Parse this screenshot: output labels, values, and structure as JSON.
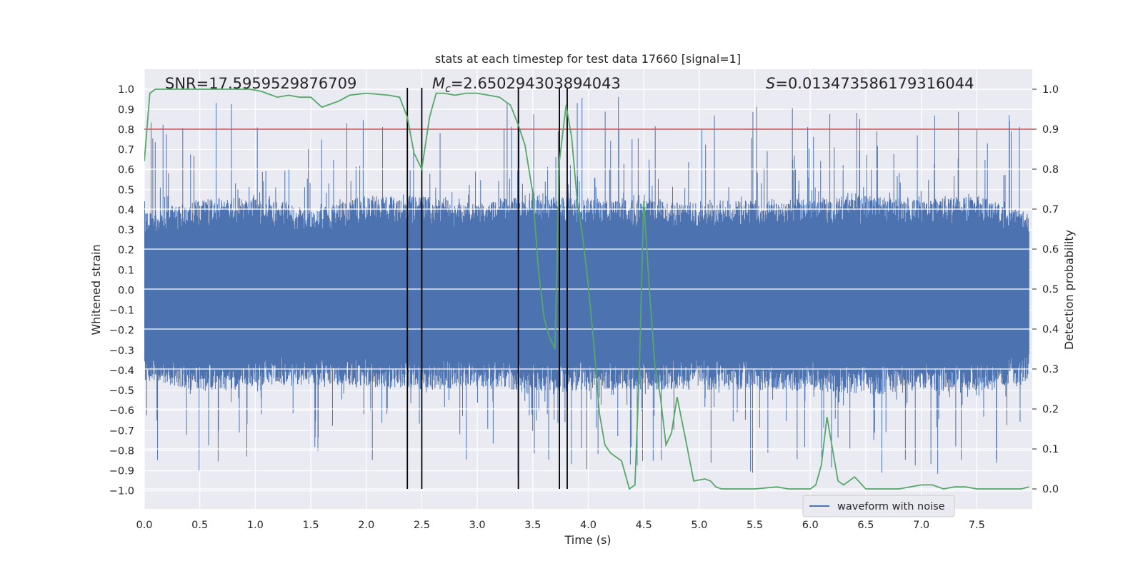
{
  "chart_data": {
    "type": "line",
    "title": "stats at each timestep for test data 17660 [signal=1]",
    "xlabel": "Time (s)",
    "ylabel_left": "Whitened strain",
    "ylabel_right": "Detection probability",
    "xlim": [
      0.0,
      8.0
    ],
    "ylim_left": [
      -1.09,
      1.1
    ],
    "ylim_right": [
      -0.05,
      1.05
    ],
    "x_ticks": [
      0.0,
      0.5,
      1.0,
      1.5,
      2.0,
      2.5,
      3.0,
      3.5,
      4.0,
      4.5,
      5.0,
      5.5,
      6.0,
      6.5,
      7.0,
      7.5
    ],
    "x_tick_labels": [
      "0.0",
      "0.5",
      "1.0",
      "1.5",
      "2.0",
      "2.5",
      "3.0",
      "3.5",
      "4.0",
      "4.5",
      "5.0",
      "5.5",
      "6.0",
      "6.5",
      "7.0",
      "7.5"
    ],
    "y_left_ticks": [
      1.0,
      0.9,
      0.8,
      0.7,
      0.6,
      0.5,
      0.4,
      0.3,
      0.2,
      0.1,
      0.0,
      -0.1,
      -0.2,
      -0.3,
      -0.4,
      -0.5,
      -0.6,
      -0.7,
      -0.8,
      -0.9,
      -1.0
    ],
    "y_left_tick_labels": [
      "1.0",
      "0.9",
      "0.8",
      "0.7",
      "0.6",
      "0.5",
      "0.4",
      "0.3",
      "0.2",
      "0.1",
      "0.0",
      "−0.1",
      "−0.2",
      "−0.3",
      "−0.4",
      "−0.5",
      "−0.6",
      "−0.7",
      "−0.8",
      "−0.9",
      "−1.0"
    ],
    "y_right_ticks": [
      1.0,
      0.9,
      0.8,
      0.7,
      0.6,
      0.5,
      0.4,
      0.3,
      0.2,
      0.1,
      0.0
    ],
    "y_right_tick_labels": [
      "1.0",
      "0.9",
      "0.8",
      "0.7",
      "0.6",
      "0.5",
      "0.4",
      "0.3",
      "0.2",
      "0.1",
      "0.0"
    ],
    "annotations": {
      "snr_label": "SNR=17.5959529876709",
      "mc_prefix": "M",
      "mc_sub": "c",
      "mc_value": "=2.650294303894043",
      "s_prefix": "S",
      "s_value": "=0.013473586179316044"
    },
    "threshold_prob": 0.9,
    "colors": {
      "waveform": "#4c72b0",
      "probability": "#55a868",
      "threshold": "#c44e52",
      "markers": "#000000",
      "background": "#eaeaf2"
    },
    "legend": {
      "label": "waveform with noise",
      "placement": "lower-right"
    },
    "vertical_markers": [
      2.37,
      2.5,
      3.37,
      3.74,
      3.81
    ],
    "waveform_envelope": {
      "x": [
        0.0,
        0.5,
        1.0,
        1.5,
        2.0,
        2.5,
        3.0,
        3.5,
        4.0,
        4.5,
        5.0,
        5.5,
        6.0,
        6.5,
        7.0,
        7.5,
        8.0
      ],
      "typical_max": [
        0.38,
        0.45,
        0.47,
        0.4,
        0.47,
        0.47,
        0.43,
        0.48,
        0.45,
        0.45,
        0.44,
        0.45,
        0.46,
        0.47,
        0.45,
        0.47,
        0.38
      ],
      "typical_min": [
        -0.45,
        -0.5,
        -0.48,
        -0.47,
        -0.48,
        -0.5,
        -0.48,
        -0.52,
        -0.5,
        -0.5,
        -0.49,
        -0.5,
        -0.5,
        -0.52,
        -0.5,
        -0.52,
        -0.45
      ],
      "peak_max": 0.98,
      "peak_min": -0.93
    },
    "series": [
      {
        "name": "detection probability",
        "x": [
          0.0,
          0.05,
          0.1,
          0.2,
          0.4,
          0.6,
          0.8,
          0.95,
          1.05,
          1.2,
          1.3,
          1.4,
          1.5,
          1.6,
          1.65,
          1.75,
          1.85,
          2.0,
          2.2,
          2.3,
          2.37,
          2.43,
          2.5,
          2.57,
          2.63,
          2.7,
          2.8,
          2.9,
          3.0,
          3.1,
          3.2,
          3.3,
          3.37,
          3.43,
          3.5,
          3.55,
          3.6,
          3.65,
          3.7,
          3.74,
          3.8,
          3.85,
          3.9,
          3.95,
          4.0,
          4.05,
          4.1,
          4.15,
          4.2,
          4.3,
          4.37,
          4.42,
          4.46,
          4.5,
          4.55,
          4.6,
          4.65,
          4.7,
          4.75,
          4.8,
          4.88,
          4.95,
          5.05,
          5.1,
          5.15,
          5.2,
          5.3,
          5.5,
          5.7,
          5.8,
          6.0,
          6.05,
          6.1,
          6.15,
          6.2,
          6.25,
          6.3,
          6.4,
          6.5,
          6.6,
          6.8,
          7.0,
          7.1,
          7.2,
          7.3,
          7.4,
          7.5,
          7.7,
          7.9,
          7.97
        ],
        "y": [
          0.82,
          0.99,
          1.0,
          1.0,
          1.0,
          1.0,
          1.0,
          1.0,
          0.995,
          0.98,
          0.985,
          0.98,
          0.98,
          0.955,
          0.96,
          0.97,
          0.985,
          0.99,
          0.985,
          0.98,
          0.93,
          0.84,
          0.8,
          0.93,
          0.99,
          0.99,
          0.985,
          0.99,
          0.99,
          0.985,
          0.98,
          0.96,
          0.91,
          0.86,
          0.74,
          0.55,
          0.43,
          0.38,
          0.35,
          0.82,
          0.96,
          0.88,
          0.72,
          0.63,
          0.51,
          0.36,
          0.19,
          0.11,
          0.09,
          0.07,
          0.0,
          0.01,
          0.3,
          0.72,
          0.5,
          0.31,
          0.23,
          0.11,
          0.14,
          0.23,
          0.12,
          0.02,
          0.025,
          0.02,
          0.005,
          0.0,
          0.0,
          0.0,
          0.005,
          0.0,
          0.0,
          0.01,
          0.06,
          0.18,
          0.1,
          0.02,
          0.01,
          0.03,
          0.0,
          0.0,
          0.0,
          0.01,
          0.01,
          0.0,
          0.005,
          0.005,
          0.0,
          0.0,
          0.0,
          0.005
        ]
      }
    ]
  }
}
